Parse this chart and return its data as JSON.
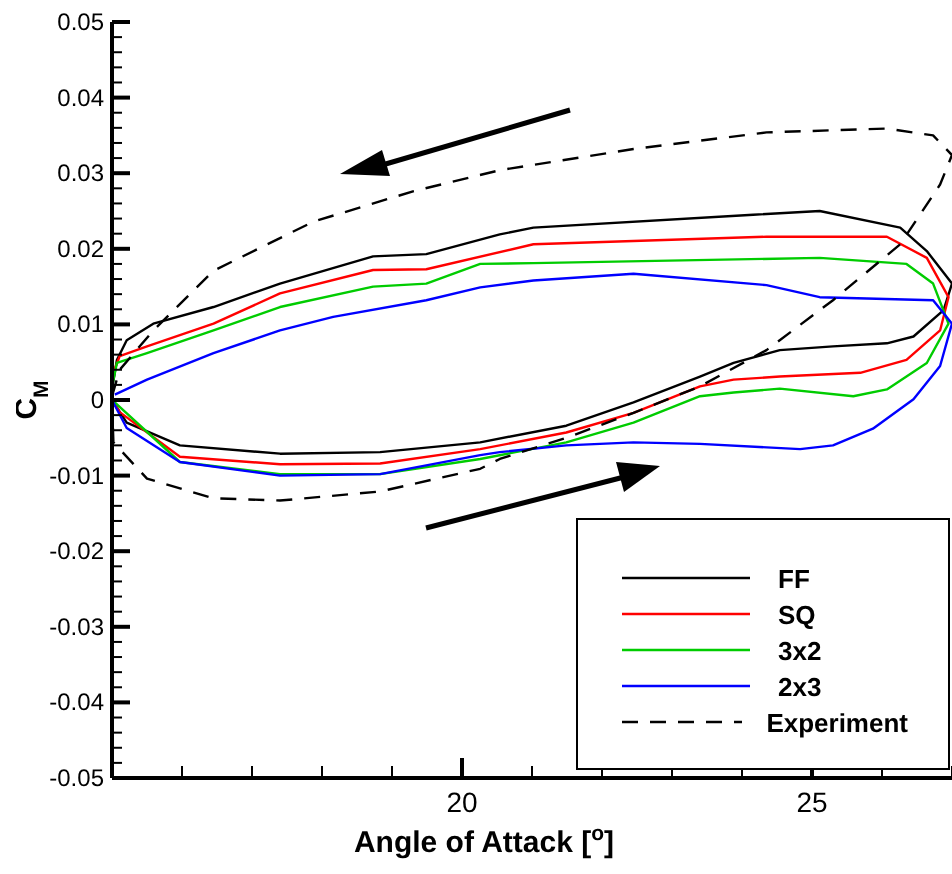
{
  "chart_data": {
    "type": "line",
    "xlabel": "Angle of Attack [$^{o}$]",
    "ylabel": "C$_{M}$",
    "xlim": [
      15,
      27
    ],
    "ylim": [
      -0.05,
      0.05
    ],
    "xticks": [
      {
        "value": 15,
        "label": null
      },
      {
        "value": 16,
        "label": null
      },
      {
        "value": 17,
        "label": null
      },
      {
        "value": 18,
        "label": null
      },
      {
        "value": 19,
        "label": null
      },
      20,
      {
        "value": 21,
        "label": null
      },
      {
        "value": 22,
        "label": null
      },
      {
        "value": 23,
        "label": null
      },
      {
        "value": 24,
        "label": null
      },
      25,
      {
        "value": 26,
        "label": null
      },
      {
        "value": 27,
        "label": null
      }
    ],
    "yticks": [
      -0.05,
      {
        "value": -0.048,
        "label": null
      },
      {
        "value": -0.046,
        "label": null
      },
      {
        "value": -0.044,
        "label": null
      },
      {
        "value": -0.042,
        "label": null
      },
      -0.04,
      {
        "value": -0.038,
        "label": null
      },
      {
        "value": -0.036,
        "label": null
      },
      {
        "value": -0.034,
        "label": null
      },
      {
        "value": -0.032,
        "label": null
      },
      -0.03,
      {
        "value": -0.028,
        "label": null
      },
      {
        "value": -0.026,
        "label": null
      },
      {
        "value": -0.024,
        "label": null
      },
      {
        "value": -0.022,
        "label": null
      },
      -0.02,
      {
        "value": -0.018,
        "label": null
      },
      {
        "value": -0.016,
        "label": null
      },
      {
        "value": -0.014,
        "label": null
      },
      {
        "value": -0.012,
        "label": null
      },
      -0.01,
      {
        "value": -0.008,
        "label": null
      },
      {
        "value": -0.006,
        "label": null
      },
      {
        "value": -0.004,
        "label": null
      },
      {
        "value": -0.002,
        "label": null
      },
      0,
      {
        "value": 0.002,
        "label": null
      },
      {
        "value": 0.004,
        "label": null
      },
      {
        "value": 0.006,
        "label": null
      },
      {
        "value": 0.008,
        "label": null
      },
      0.01,
      {
        "value": 0.012,
        "label": null
      },
      {
        "value": 0.014,
        "label": null
      },
      {
        "value": 0.016,
        "label": null
      },
      {
        "value": 0.018,
        "label": null
      },
      0.02,
      {
        "value": 0.022,
        "label": null
      },
      {
        "value": 0.024,
        "label": null
      },
      {
        "value": 0.026,
        "label": null
      },
      {
        "value": 0.028,
        "label": null
      },
      0.03,
      {
        "value": 0.032,
        "label": null
      },
      {
        "value": 0.034,
        "label": null
      },
      {
        "value": 0.036,
        "label": null
      },
      {
        "value": 0.038,
        "label": null
      },
      0.04,
      {
        "value": 0.042,
        "label": null
      },
      {
        "value": 0.044,
        "label": null
      },
      {
        "value": 0.046,
        "label": null
      },
      {
        "value": 0.048,
        "label": null
      },
      0.05
    ],
    "legend": "bottom right",
    "series": [
      {
        "name": "FF",
        "color": "#000000",
        "line_style": "solid",
        "x": [
          15,
          15.21,
          15.97,
          17.4,
          18.83,
          20.26,
          21.49,
          22.45,
          23.4,
          23.88,
          24.54,
          25.3,
          26.07,
          26.45,
          26.88,
          27,
          26.64,
          26.26,
          25.11,
          24.16,
          21.02,
          20.54,
          19.49,
          18.73,
          17.4,
          16.45,
          15.59,
          15.21,
          15.07,
          15
        ],
        "values": [
          0,
          -0.003,
          -0.006,
          -0.0071,
          -0.0069,
          -0.0056,
          -0.0034,
          -0.0003,
          0.0031,
          0.0049,
          0.0066,
          0.0071,
          0.0075,
          0.0084,
          0.0119,
          0.0154,
          0.0197,
          0.0228,
          0.025,
          0.0245,
          0.0228,
          0.0219,
          0.0193,
          0.019,
          0.0154,
          0.0123,
          0.0101,
          0.0079,
          0.0053,
          0.0014
        ]
      },
      {
        "name": "SQ",
        "color": "#ff0000",
        "line_style": "solid",
        "x": [
          15,
          15.11,
          15.97,
          17.4,
          18.83,
          20.26,
          21.49,
          22.45,
          23.4,
          23.88,
          24.54,
          25.69,
          26.35,
          26.83,
          26.95,
          26.64,
          26.07,
          24.35,
          21.02,
          19.49,
          18.73,
          17.4,
          16.45,
          15.5,
          15.11,
          15.02
        ],
        "values": [
          0,
          -0.0016,
          -0.0075,
          -0.0085,
          -0.0084,
          -0.0065,
          -0.0043,
          -0.0017,
          0.0018,
          0.0027,
          0.0031,
          0.0036,
          0.0053,
          0.0092,
          0.0136,
          0.0188,
          0.0216,
          0.0216,
          0.0206,
          0.0173,
          0.0172,
          0.0141,
          0.0101,
          0.0071,
          0.0058,
          0.0036
        ]
      },
      {
        "name": "3x2",
        "color": "#00cc00",
        "line_style": "solid",
        "x": [
          15,
          15.97,
          17.4,
          18.83,
          20.26,
          21.49,
          22.45,
          23.4,
          23.88,
          24.54,
          25.59,
          26.07,
          26.64,
          26.95,
          26.73,
          26.35,
          25.11,
          21.02,
          20.26,
          19.49,
          18.73,
          17.4,
          16.45,
          15.5,
          15.07,
          15
        ],
        "values": [
          0,
          -0.0082,
          -0.0098,
          -0.0098,
          -0.0078,
          -0.0056,
          -0.003,
          0.0005,
          0.001,
          0.0015,
          0.0005,
          0.0014,
          0.0049,
          0.0101,
          0.0154,
          0.018,
          0.0188,
          0.0181,
          0.018,
          0.0154,
          0.015,
          0.0123,
          0.0092,
          0.0062,
          0.0049,
          0.0018
        ]
      },
      {
        "name": "2x3",
        "color": "#0000ff",
        "line_style": "solid",
        "x": [
          15,
          15.21,
          15.97,
          17.4,
          18.83,
          20.26,
          20.54,
          21.49,
          22.45,
          23.4,
          24.83,
          25.3,
          25.87,
          26.45,
          26.83,
          27,
          26.73,
          25.11,
          24.35,
          22.45,
          21.02,
          20.26,
          19.49,
          18.16,
          17.4,
          16.45,
          15.5,
          15.04
        ],
        "values": [
          0,
          -0.0037,
          -0.0082,
          -0.01,
          -0.0098,
          -0.0073,
          -0.0069,
          -0.006,
          -0.0056,
          -0.0058,
          -0.0065,
          -0.006,
          -0.0038,
          0.0001,
          0.0045,
          0.0101,
          0.0132,
          0.0136,
          0.0152,
          0.0167,
          0.0158,
          0.0149,
          0.0132,
          0.011,
          0.0092,
          0.0062,
          0.0027,
          0.0007
        ]
      },
      {
        "name": "Experiment",
        "color": "#000000",
        "line_style": "dashed",
        "x": [
          15,
          15.02,
          15.5,
          16.45,
          17.4,
          18.83,
          20.26,
          20.54,
          21.49,
          22.45,
          23.4,
          24.35,
          25.3,
          26.26,
          26.83,
          27,
          26.73,
          26.07,
          24.35,
          22.45,
          20.54,
          19.3,
          17.88,
          16.45,
          15.59,
          15.11,
          15
        ],
        "values": [
          0,
          -0.0056,
          -0.0104,
          -0.013,
          -0.0133,
          -0.0121,
          -0.0091,
          -0.0078,
          -0.005,
          -0.0017,
          0.0018,
          0.0066,
          0.0132,
          0.0206,
          0.0285,
          0.0324,
          0.035,
          0.0359,
          0.0354,
          0.0332,
          0.0304,
          0.0276,
          0.0236,
          0.0171,
          0.0092,
          0.004,
          0.0005
        ]
      }
    ]
  }
}
